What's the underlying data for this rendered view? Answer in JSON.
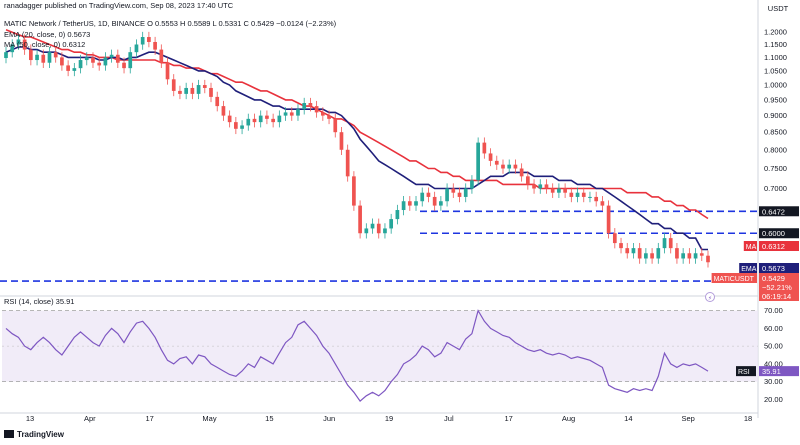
{
  "header": {
    "attribution": "ranadagger published on TradingView.com, Sep 08, 2023 17:40 UTC",
    "symbol_line": "MATIC Network / TetherUS, 1D, BINANCE  O 0.5553  H 0.5589  L 0.5331  C 0.5429  −0.0124 (−2.23%)",
    "ema_line": "EMA (20, close, 0)  0.5673",
    "ma_line": "MA (50, close, 0)  0.6312",
    "rsi_line": "RSI (14, close)  35.91"
  },
  "brand": "TradingView",
  "colors": {
    "up": "#26a69a",
    "down": "#ef5350",
    "ema": "#1f1f7a",
    "ma": "#e8323c",
    "rsi": "#7e57c2",
    "level": "#1e35e0"
  },
  "chart_data": [
    {
      "type": "candlestick",
      "title": "MATIC Network / TetherUS, 1D, BINANCE",
      "price_unit": "USDT",
      "x_ticks": [
        "13",
        "Apr",
        "17",
        "May",
        "15",
        "Jun",
        "19",
        "Jul",
        "17",
        "Aug",
        "14",
        "Sep",
        "18"
      ],
      "y_ticks": [
        "1.2000",
        "1.1500",
        "1.1000",
        "1.0500",
        "1.0000",
        "0.9500",
        "0.9000",
        "0.8500",
        "0.8000",
        "0.7500",
        "0.7000"
      ],
      "ylim": [
        0.49,
        1.26
      ],
      "log_scale": true,
      "horizontal_levels": [
        {
          "label": "0.6472",
          "value": 0.6472
        },
        {
          "label": "0.6000",
          "value": 0.6
        },
        {
          "label": "0.5089",
          "value": 0.5089
        }
      ],
      "last_value_labels": [
        {
          "name": "MA",
          "value": "0.6312"
        },
        {
          "name": "EMA",
          "value": "0.5673"
        },
        {
          "name": "MATICUSDT",
          "value": "0.5429"
        },
        {
          "name": "change",
          "value": "−52.21%"
        },
        {
          "name": "countdown",
          "value": "06:19:14"
        }
      ],
      "close": [
        1.12,
        1.15,
        1.17,
        1.13,
        1.09,
        1.11,
        1.08,
        1.12,
        1.1,
        1.07,
        1.05,
        1.06,
        1.09,
        1.1,
        1.08,
        1.07,
        1.1,
        1.11,
        1.08,
        1.06,
        1.12,
        1.15,
        1.18,
        1.16,
        1.13,
        1.08,
        1.02,
        0.98,
        0.97,
        0.99,
        0.97,
        1.0,
        0.99,
        0.96,
        0.93,
        0.9,
        0.88,
        0.86,
        0.87,
        0.89,
        0.88,
        0.9,
        0.89,
        0.88,
        0.9,
        0.91,
        0.9,
        0.92,
        0.94,
        0.93,
        0.91,
        0.9,
        0.89,
        0.85,
        0.8,
        0.73,
        0.66,
        0.6,
        0.61,
        0.62,
        0.6,
        0.61,
        0.63,
        0.65,
        0.67,
        0.66,
        0.67,
        0.69,
        0.68,
        0.66,
        0.67,
        0.7,
        0.69,
        0.68,
        0.7,
        0.72,
        0.82,
        0.79,
        0.77,
        0.76,
        0.75,
        0.76,
        0.75,
        0.73,
        0.71,
        0.7,
        0.71,
        0.7,
        0.69,
        0.7,
        0.69,
        0.68,
        0.69,
        0.68,
        0.68,
        0.67,
        0.66,
        0.6,
        0.58,
        0.57,
        0.56,
        0.57,
        0.55,
        0.56,
        0.55,
        0.57,
        0.59,
        0.57,
        0.55,
        0.56,
        0.55,
        0.56,
        0.5553,
        0.5429
      ],
      "ema20": [
        1.12,
        1.13,
        1.14,
        1.14,
        1.13,
        1.13,
        1.12,
        1.12,
        1.12,
        1.11,
        1.1,
        1.1,
        1.1,
        1.1,
        1.1,
        1.09,
        1.09,
        1.1,
        1.1,
        1.09,
        1.1,
        1.1,
        1.11,
        1.12,
        1.12,
        1.11,
        1.1,
        1.09,
        1.08,
        1.07,
        1.06,
        1.05,
        1.05,
        1.04,
        1.03,
        1.01,
        1.0,
        0.98,
        0.97,
        0.96,
        0.95,
        0.95,
        0.94,
        0.93,
        0.93,
        0.92,
        0.92,
        0.92,
        0.92,
        0.92,
        0.92,
        0.92,
        0.91,
        0.91,
        0.9,
        0.88,
        0.86,
        0.83,
        0.81,
        0.79,
        0.77,
        0.76,
        0.75,
        0.74,
        0.73,
        0.72,
        0.71,
        0.71,
        0.71,
        0.7,
        0.7,
        0.7,
        0.7,
        0.7,
        0.7,
        0.7,
        0.71,
        0.72,
        0.73,
        0.73,
        0.73,
        0.74,
        0.74,
        0.74,
        0.74,
        0.73,
        0.73,
        0.73,
        0.73,
        0.72,
        0.72,
        0.72,
        0.71,
        0.71,
        0.71,
        0.7,
        0.7,
        0.69,
        0.68,
        0.67,
        0.66,
        0.65,
        0.64,
        0.63,
        0.62,
        0.62,
        0.61,
        0.61,
        0.6,
        0.6,
        0.59,
        0.59,
        0.5673,
        0.5673
      ],
      "ma50": [
        1.21,
        1.2,
        1.19,
        1.18,
        1.18,
        1.17,
        1.16,
        1.15,
        1.14,
        1.13,
        1.13,
        1.12,
        1.12,
        1.11,
        1.11,
        1.1,
        1.1,
        1.1,
        1.09,
        1.09,
        1.09,
        1.09,
        1.09,
        1.09,
        1.09,
        1.08,
        1.08,
        1.07,
        1.07,
        1.06,
        1.06,
        1.06,
        1.05,
        1.04,
        1.04,
        1.03,
        1.02,
        1.01,
        1.01,
        1.0,
        0.99,
        0.98,
        0.98,
        0.97,
        0.96,
        0.95,
        0.95,
        0.94,
        0.93,
        0.93,
        0.92,
        0.91,
        0.9,
        0.89,
        0.89,
        0.88,
        0.87,
        0.85,
        0.84,
        0.83,
        0.82,
        0.81,
        0.8,
        0.79,
        0.78,
        0.77,
        0.77,
        0.76,
        0.75,
        0.75,
        0.74,
        0.74,
        0.73,
        0.73,
        0.72,
        0.72,
        0.72,
        0.72,
        0.72,
        0.72,
        0.71,
        0.71,
        0.71,
        0.71,
        0.71,
        0.71,
        0.7,
        0.7,
        0.7,
        0.7,
        0.7,
        0.7,
        0.7,
        0.7,
        0.7,
        0.7,
        0.7,
        0.7,
        0.7,
        0.7,
        0.69,
        0.69,
        0.69,
        0.69,
        0.68,
        0.68,
        0.67,
        0.67,
        0.66,
        0.66,
        0.65,
        0.65,
        0.64,
        0.6312
      ]
    },
    {
      "type": "line",
      "title": "RSI (14, close)",
      "y_ticks": [
        "70.00",
        "60.00",
        "50.00",
        "40.00",
        "30.00",
        "20.00"
      ],
      "ylim": [
        14,
        76
      ],
      "bands": [
        70,
        30
      ],
      "midline": 50,
      "current_value": "35.91",
      "values": [
        60,
        57,
        55,
        50,
        48,
        52,
        55,
        52,
        48,
        45,
        50,
        55,
        58,
        55,
        52,
        50,
        56,
        60,
        57,
        52,
        58,
        63,
        64,
        60,
        55,
        48,
        42,
        40,
        43,
        44,
        40,
        45,
        44,
        40,
        38,
        36,
        34,
        33,
        36,
        40,
        38,
        44,
        42,
        40,
        46,
        52,
        55,
        62,
        64,
        60,
        56,
        50,
        46,
        40,
        34,
        28,
        24,
        19,
        22,
        24,
        22,
        25,
        30,
        34,
        40,
        42,
        45,
        50,
        48,
        44,
        46,
        52,
        50,
        48,
        54,
        57,
        70,
        64,
        60,
        58,
        56,
        55,
        52,
        50,
        48,
        47,
        48,
        46,
        45,
        46,
        45,
        43,
        44,
        43,
        42,
        40,
        38,
        28,
        26,
        25,
        24,
        26,
        25,
        26,
        25,
        33,
        46,
        40,
        38,
        40,
        39,
        40,
        38,
        35.91
      ]
    }
  ]
}
